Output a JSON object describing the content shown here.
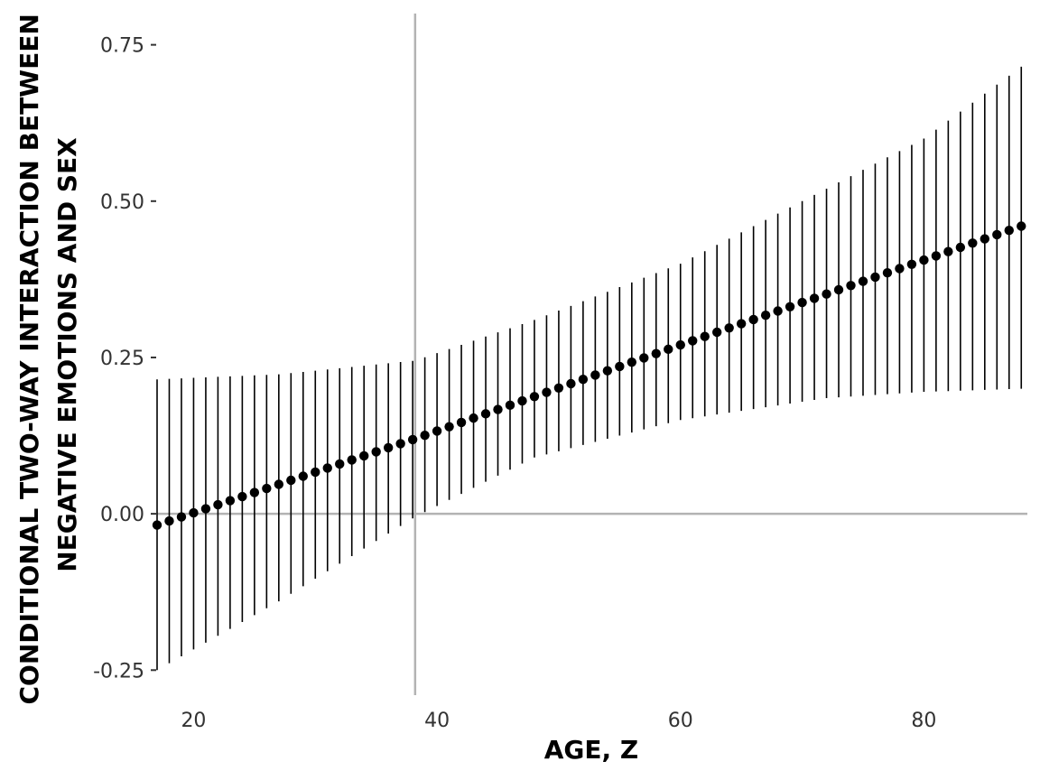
{
  "chart_data": {
    "type": "scatter",
    "title": "",
    "xlabel": "AGE, Z",
    "ylabel_lines": [
      "CONDITIONAL TWO-WAY INTERACTION BETWEEN",
      "NEGATIVE EMOTIONS AND SEX"
    ],
    "xlim": [
      17,
      88.5
    ],
    "ylim": [
      -0.29,
      0.8
    ],
    "x_ticks": [
      20,
      40,
      60,
      80
    ],
    "x_tick_labels": [
      "20",
      "40",
      "60",
      "80"
    ],
    "y_ticks": [
      -0.25,
      0,
      0.25,
      0.5,
      0.75
    ],
    "y_tick_labels": [
      "-0.25",
      "0.00",
      "0.25",
      "0.50",
      "0.75"
    ],
    "reference_lines": {
      "vertical_x": 38.2,
      "horizontal_y": 0
    },
    "grid": false,
    "legend": "none",
    "x_range": {
      "start": 17,
      "end": 88,
      "step": 1
    },
    "estimate": {
      "at_x": [
        17,
        38.2,
        60,
        88
      ],
      "values": [
        -0.018,
        0.12,
        0.27,
        0.46
      ]
    },
    "ci_upper": {
      "at_x": [
        17,
        27,
        38.2,
        48,
        60,
        72,
        80,
        88
      ],
      "values": [
        0.215,
        0.223,
        0.245,
        0.31,
        0.4,
        0.52,
        0.6,
        0.715
      ]
    },
    "ci_lower": {
      "at_x": [
        17,
        27,
        38.2,
        48,
        60,
        72,
        80,
        88
      ],
      "values": [
        -0.25,
        -0.14,
        -0.005,
        0.09,
        0.15,
        0.185,
        0.195,
        0.2
      ]
    },
    "colors": {
      "points": "#000000",
      "error_bars": "#000000",
      "reference_lines": "#b3b3b3",
      "tick_text": "#333333"
    }
  }
}
